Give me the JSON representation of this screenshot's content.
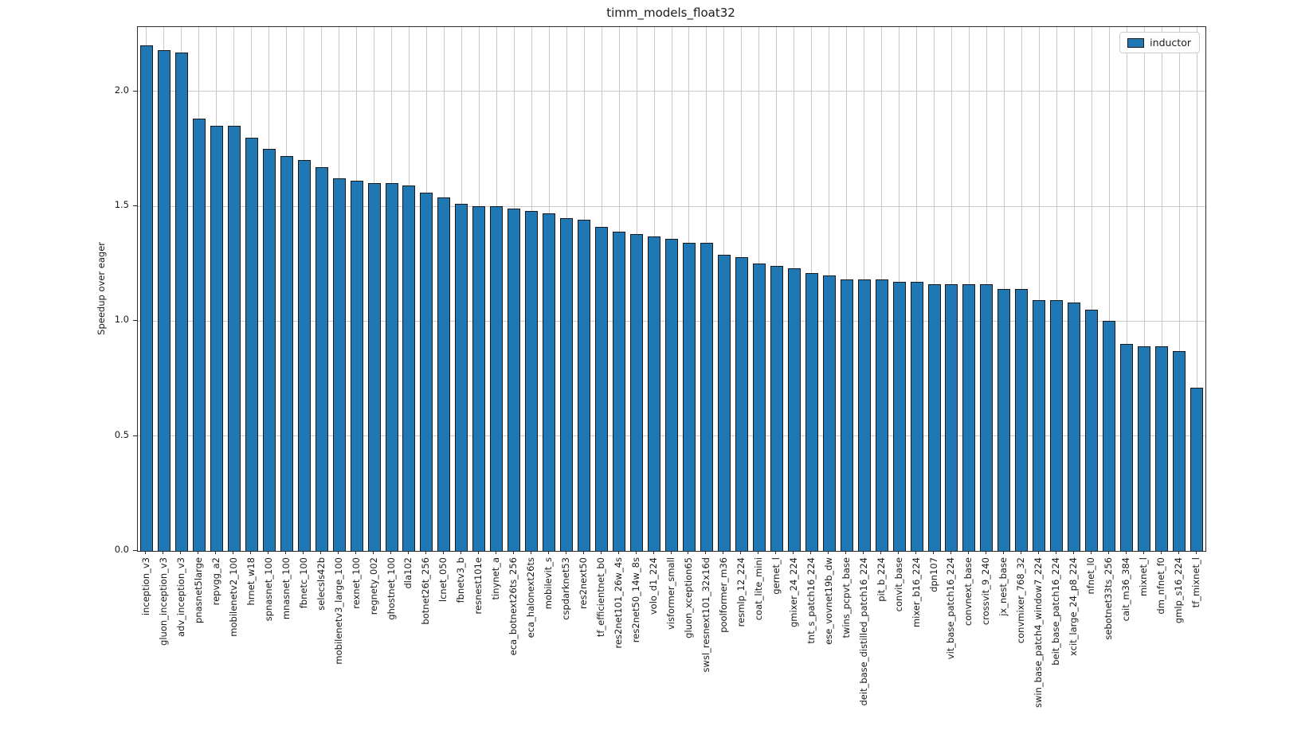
{
  "chart_data": {
    "type": "bar",
    "title": "timm_models_float32",
    "xlabel": "",
    "ylabel": "Speedup over eager",
    "ylim": [
      0,
      2.28
    ],
    "yticks": [
      "0.0",
      "0.5",
      "1.0",
      "1.5",
      "2.0"
    ],
    "grid": true,
    "legend": {
      "label": "inductor",
      "position": "upper right"
    },
    "colors": {
      "bar_fill": "#1f77b4",
      "bar_edge": "#1a1a1a",
      "grid": "#c9c9c9",
      "spine": "#2b2b2b",
      "text": "#1a1a1a"
    },
    "categories": [
      "inception_v3",
      "gluon_inception_v3",
      "adv_inception_v3",
      "pnasnet5large",
      "repvgg_a2",
      "mobilenetv2_100",
      "hrnet_w18",
      "spnasnet_100",
      "mnasnet_100",
      "fbnetc_100",
      "selecsls42b",
      "mobilenetv3_large_100",
      "rexnet_100",
      "regnety_002",
      "ghostnet_100",
      "dla102",
      "botnet26t_256",
      "lcnet_050",
      "fbnetv3_b",
      "resnest101e",
      "tinynet_a",
      "eca_botnext26ts_256",
      "eca_halonext26ts",
      "mobilevit_s",
      "cspdarknet53",
      "res2next50",
      "tf_efficientnet_b0",
      "res2net101_26w_4s",
      "res2net50_14w_8s",
      "volo_d1_224",
      "visformer_small",
      "gluon_xception65",
      "swsl_resnext101_32x16d",
      "poolformer_m36",
      "resmlp_12_224",
      "coat_lite_mini",
      "gernet_l",
      "gmixer_24_224",
      "tnt_s_patch16_224",
      "ese_vovnet19b_dw",
      "twins_pcpvt_base",
      "deit_base_distilled_patch16_224",
      "pit_b_224",
      "convit_base",
      "mixer_b16_224",
      "dpn107",
      "vit_base_patch16_224",
      "convnext_base",
      "crossvit_9_240",
      "jx_nest_base",
      "convmixer_768_32",
      "swin_base_patch4_window7_224",
      "beit_base_patch16_224",
      "xcit_large_24_p8_224",
      "nfnet_l0",
      "sebotnet33ts_256",
      "cait_m36_384",
      "mixnet_l",
      "dm_nfnet_f0",
      "gmlp_s16_224",
      "tf_mixnet_l"
    ],
    "values": [
      2.2,
      2.18,
      2.17,
      1.88,
      1.85,
      1.85,
      1.8,
      1.75,
      1.72,
      1.7,
      1.67,
      1.62,
      1.61,
      1.6,
      1.6,
      1.59,
      1.56,
      1.54,
      1.51,
      1.5,
      1.5,
      1.49,
      1.48,
      1.47,
      1.45,
      1.44,
      1.41,
      1.39,
      1.38,
      1.37,
      1.36,
      1.34,
      1.34,
      1.29,
      1.28,
      1.25,
      1.24,
      1.23,
      1.21,
      1.2,
      1.18,
      1.18,
      1.18,
      1.17,
      1.17,
      1.16,
      1.16,
      1.16,
      1.16,
      1.14,
      1.14,
      1.09,
      1.09,
      1.08,
      1.05,
      1.0,
      0.9,
      0.89,
      0.89,
      0.87,
      0.71
    ]
  }
}
